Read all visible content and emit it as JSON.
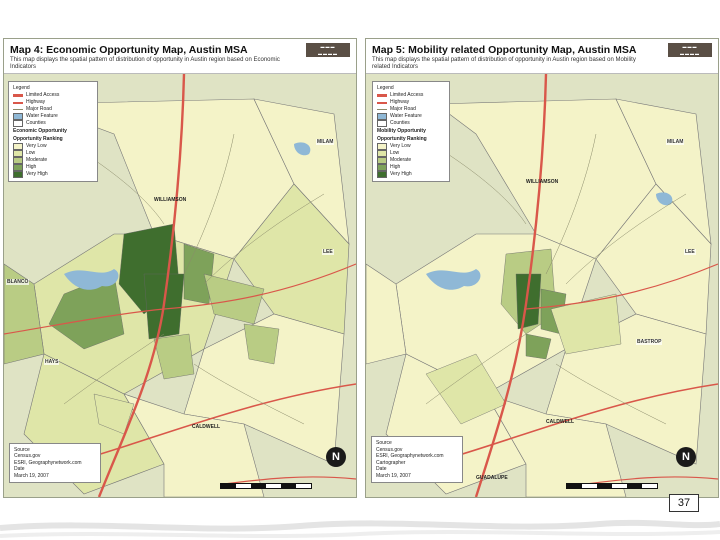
{
  "maps": {
    "left": {
      "title": "Map 4: Economic Opportunity Map, Austin MSA",
      "subtitle": "This map displays the spatial pattern of distribution of opportunity in Austin region based on Economic Indicators",
      "legend": {
        "title": "Legend",
        "items": [
          "Limited Access",
          "Highway",
          "Major Road",
          "Water Feature",
          "Counties"
        ],
        "ranking_title": "Economic Opportunity",
        "ranking_subtitle": "Opportunity Ranking",
        "ranking": [
          "Very Low",
          "Low",
          "Moderate",
          "High",
          "Very High"
        ]
      },
      "source": {
        "label": "Source",
        "lines": [
          "Census.gov",
          "ESRI, Geographynetwork.com",
          "Date",
          "March 19, 2007"
        ]
      },
      "county_labels": [
        "MILAM",
        "LEE",
        "BLANCO",
        "HAYS"
      ],
      "town_labels": [
        "WILLIAMSON",
        "CALDWELL"
      ]
    },
    "right": {
      "title": "Map 5: Mobility related Opportunity Map, Austin MSA",
      "subtitle": "This map displays the spatial pattern of distribution of opportunity in Austin region based on Mobility related Indicators",
      "legend": {
        "title": "Legend",
        "items": [
          "Limited Access",
          "Highway",
          "Major Road",
          "Water Feature",
          "Counties"
        ],
        "ranking_title": "Mobility Opportunity",
        "ranking_subtitle": "Opportunity Ranking",
        "ranking": [
          "Very Low",
          "Low",
          "Moderate",
          "High",
          "Very High"
        ]
      },
      "source": {
        "label": "Source",
        "lines": [
          "Census.gov",
          "ESRI, Geographynetwork.com",
          "Cartographer",
          "Date",
          "March 19, 2007"
        ]
      },
      "county_labels": [
        "MILAM",
        "LEE",
        "BASTROP"
      ],
      "town_labels": [
        "WILLIAMSON",
        "CALDWELL",
        "GUADALUPE"
      ]
    }
  },
  "page_number": "37",
  "colors": {
    "very_low": "#f4f3c8",
    "low": "#dfe6a8",
    "moderate": "#b9cc84",
    "high": "#7ea25a",
    "very_high": "#3f6e2e",
    "water": "#8fb8d6",
    "highway": "#d9574a"
  }
}
